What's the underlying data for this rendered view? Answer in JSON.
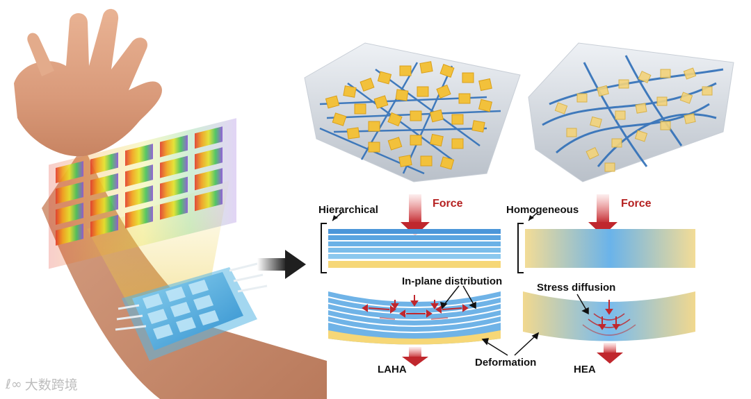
{
  "labels": {
    "hierarchical": "Hierarchical",
    "homogeneous": "Homogeneous",
    "force_left": "Force",
    "force_right": "Force",
    "in_plane": "In-plane distribution",
    "stress_diffusion": "Stress diffusion",
    "deformation": "Deformation",
    "laha": "LAHA",
    "hea": "HEA"
  },
  "watermark": {
    "glyph": "ℓ∞",
    "text": "大数跨境"
  },
  "colors": {
    "force_red": "#c0272d",
    "layer_blue": "#3f8fd8",
    "pad_yellow": "#f5d36b",
    "fiber_blue": "#2f6fb8",
    "flake_gold": "#f2c13b"
  },
  "icons": {
    "process_arrow": "right-arrow-icon",
    "force_arrow": "down-arrow-icon"
  }
}
